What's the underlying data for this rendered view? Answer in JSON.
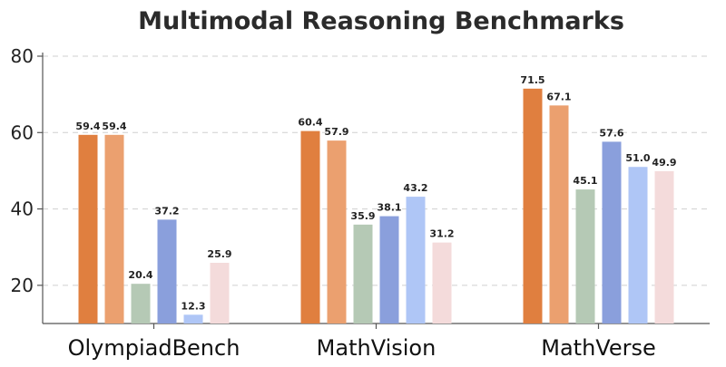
{
  "chart_data": {
    "type": "bar",
    "title": "Multimodal Reasoning Benchmarks",
    "xlabel": "",
    "ylabel": "",
    "categories": [
      "OlympiadBench",
      "MathVision",
      "MathVerse"
    ],
    "ylim": [
      10,
      80
    ],
    "yticks": [
      20,
      40,
      60,
      80
    ],
    "grid": true,
    "legend": "none",
    "series": [
      {
        "color": "#e07f3f",
        "values": [
          59.4,
          60.4,
          71.5
        ]
      },
      {
        "color": "#eba06f",
        "values": [
          59.4,
          57.9,
          67.1
        ]
      },
      {
        "color": "#b5c9b5",
        "values": [
          20.4,
          35.9,
          45.1
        ]
      },
      {
        "color": "#8a9fdc",
        "values": [
          37.2,
          38.1,
          57.6
        ]
      },
      {
        "color": "#afc6f6",
        "values": [
          12.3,
          43.2,
          51.0
        ]
      },
      {
        "color": "#f4dbdb",
        "values": [
          25.9,
          31.2,
          49.9
        ]
      }
    ],
    "value_labels": [
      [
        "59.4",
        "60.4",
        "71.5"
      ],
      [
        "59.4",
        "57.9",
        "67.1"
      ],
      [
        "20.4",
        "35.9",
        "45.1"
      ],
      [
        "37.2",
        "38.1",
        "57.6"
      ],
      [
        "12.3",
        "43.2",
        "51.0"
      ],
      [
        "25.9",
        "31.2",
        "49.9"
      ]
    ]
  }
}
